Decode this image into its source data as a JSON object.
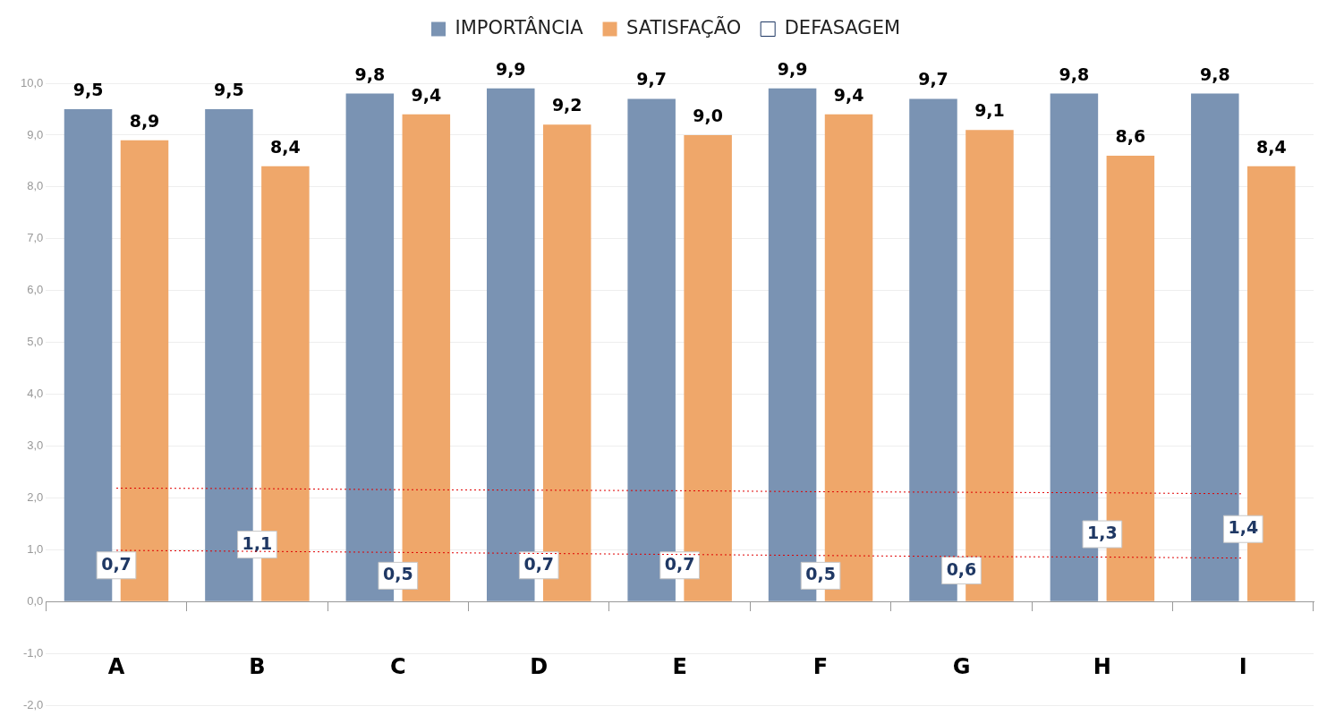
{
  "chart_data": {
    "type": "bar",
    "categories": [
      "A",
      "B",
      "C",
      "D",
      "E",
      "F",
      "G",
      "H",
      "I"
    ],
    "series": [
      {
        "name": "IMPORTÂNCIA",
        "color": "#7a93b3",
        "values": [
          9.5,
          9.5,
          9.8,
          9.9,
          9.7,
          9.9,
          9.7,
          9.8,
          9.8
        ],
        "value_labels": [
          "9,5",
          "9,5",
          "9,8",
          "9,9",
          "9,7",
          "9,9",
          "9,7",
          "9,8",
          "9,8"
        ]
      },
      {
        "name": "SATISFAÇÃO",
        "color": "#efa76a",
        "values": [
          8.9,
          8.4,
          9.4,
          9.2,
          9.0,
          9.4,
          9.1,
          8.6,
          8.4
        ],
        "value_labels": [
          "8,9",
          "8,4",
          "9,4",
          "9,2",
          "9,0",
          "9,4",
          "9,1",
          "8,6",
          "8,4"
        ]
      },
      {
        "name": "DEFASAGEM",
        "type": "scatter",
        "marker": "square",
        "color": "#1f3864",
        "values": [
          0.7,
          1.1,
          0.5,
          0.7,
          0.7,
          0.5,
          0.6,
          1.3,
          1.4
        ],
        "value_labels": [
          "0,7",
          "1,1",
          "0,5",
          "0,7",
          "0,7",
          "0,5",
          "0,6",
          "1,3",
          "1,4"
        ]
      },
      {
        "type": "line",
        "color": "#e00000",
        "line_style": "dotted",
        "marker": "none",
        "values": [
          2.19,
          2.18,
          2.16,
          2.15,
          2.14,
          2.12,
          2.11,
          2.1,
          2.08
        ]
      },
      {
        "type": "line",
        "color": "#e00000",
        "line_style": "dotted",
        "marker": "none",
        "values": [
          0.99,
          0.97,
          0.95,
          0.93,
          0.91,
          0.89,
          0.87,
          0.86,
          0.84
        ]
      }
    ],
    "ylim": [
      -2,
      10
    ],
    "yticks": [
      {
        "value": -2,
        "label": "-2,0"
      },
      {
        "value": -1,
        "label": "-1,0"
      },
      {
        "value": 0,
        "label": "0,0"
      },
      {
        "value": 1,
        "label": "1,0"
      },
      {
        "value": 2,
        "label": "2,0"
      },
      {
        "value": 3,
        "label": "3,0"
      },
      {
        "value": 4,
        "label": "4,0"
      },
      {
        "value": 5,
        "label": "5,0"
      },
      {
        "value": 6,
        "label": "6,0"
      },
      {
        "value": 7,
        "label": "7,0"
      },
      {
        "value": 8,
        "label": "8,0"
      },
      {
        "value": 9,
        "label": "9,0"
      },
      {
        "value": 10,
        "label": "10,0"
      }
    ],
    "grid": "y",
    "legend": "top"
  }
}
